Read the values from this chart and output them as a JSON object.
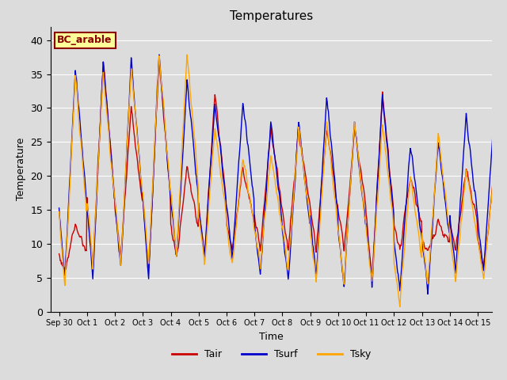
{
  "title": "Temperatures",
  "xlabel": "Time",
  "ylabel": "Temperature",
  "annotation": "BC_arable",
  "legend": [
    "Tair",
    "Tsurf",
    "Tsky"
  ],
  "line_colors": [
    "#cc0000",
    "#0000cc",
    "#ffa500"
  ],
  "ylim": [
    0,
    42
  ],
  "yticks": [
    0,
    5,
    10,
    15,
    20,
    25,
    30,
    35,
    40
  ],
  "xtick_labels": [
    "Sep 30",
    "Oct 1",
    "Oct 2",
    "Oct 3",
    "Oct 4",
    "Oct 5",
    "Oct 6",
    "Oct 7",
    "Oct 8",
    "Oct 9",
    "Oct 10",
    "Oct 11",
    "Oct 12",
    "Oct 13",
    "Oct 14",
    "Oct 15"
  ],
  "bg_color": "#dcdcdc",
  "fig_bg": "#dcdcdc",
  "n_days": 16,
  "pts_per_day": 48,
  "day_peaks_tair": [
    13,
    37,
    30,
    37,
    21,
    32,
    21,
    27,
    27,
    27,
    27,
    32,
    20,
    13,
    21,
    21
  ],
  "day_mins_tair": [
    6,
    6,
    8,
    6,
    8,
    8,
    9,
    9,
    9,
    9,
    9,
    5,
    9,
    9,
    9,
    6
  ],
  "day_peaks_tsurf": [
    36,
    37,
    37,
    38,
    34,
    31,
    31,
    28,
    28,
    32,
    28,
    32,
    25,
    25,
    29,
    29
  ],
  "day_mins_tsurf": [
    5,
    5,
    6,
    5,
    8,
    8,
    8,
    5,
    4,
    5,
    4,
    4,
    3,
    3,
    6,
    6
  ],
  "day_peaks_tsky": [
    35,
    35,
    36,
    38,
    38,
    27,
    23,
    23,
    27,
    28,
    28,
    28,
    20,
    26,
    21,
    21
  ],
  "day_mins_tsky": [
    4,
    7,
    7,
    7,
    8,
    7,
    7,
    7,
    6,
    4,
    4,
    4,
    1,
    4,
    5,
    5
  ]
}
